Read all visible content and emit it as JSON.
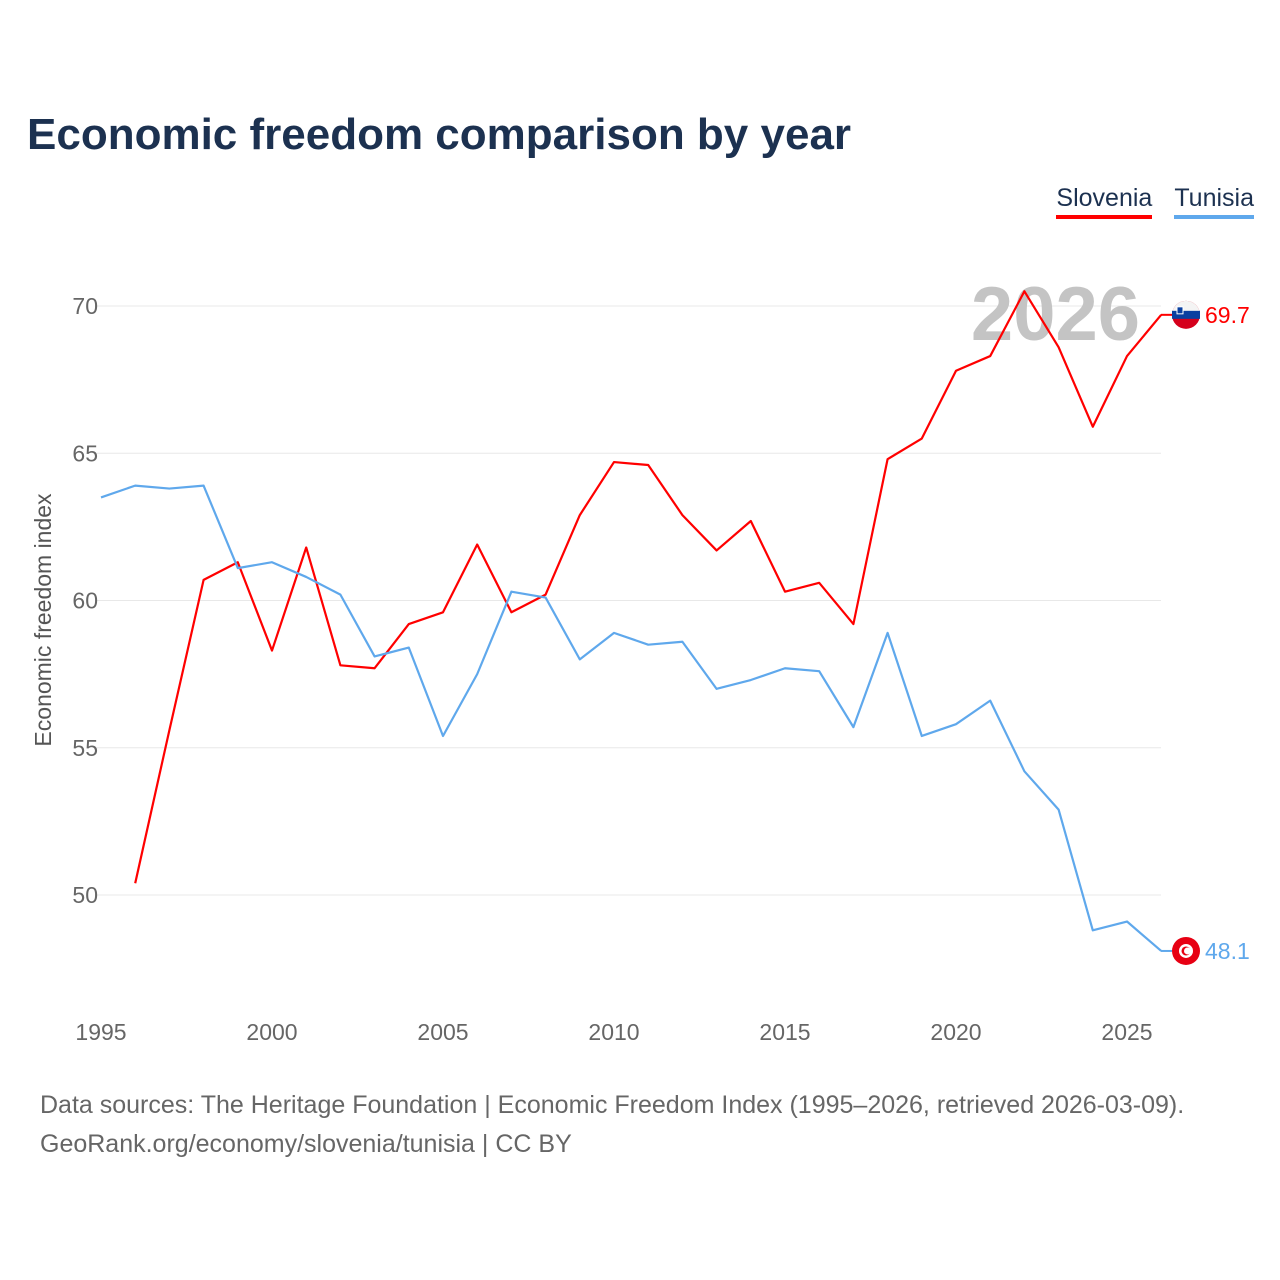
{
  "title": "Economic freedom comparison by year",
  "footer": {
    "line1": "Data sources: The Heritage Foundation | Economic Freedom Index (1995–2026, retrieved 2026-03-09).",
    "line2": "GeoRank.org/economy/slovenia/tunisia | CC BY"
  },
  "chart_data": {
    "type": "line",
    "title": "Economic freedom comparison by year",
    "xlabel": "",
    "ylabel": "Economic freedom index",
    "year_label": "2026",
    "xlim": [
      1995,
      2026
    ],
    "ylim": [
      46,
      72
    ],
    "xticks": [
      1995,
      2000,
      2005,
      2010,
      2015,
      2020,
      2025
    ],
    "yticks": [
      50,
      55,
      60,
      65,
      70
    ],
    "grid": true,
    "legend_position": "top-right",
    "series": [
      {
        "name": "Slovenia",
        "color": "#ff0000",
        "end_label": "69.7",
        "x": [
          1996,
          1997,
          1998,
          1999,
          2000,
          2001,
          2002,
          2003,
          2004,
          2005,
          2006,
          2007,
          2008,
          2009,
          2010,
          2011,
          2012,
          2013,
          2014,
          2015,
          2016,
          2017,
          2018,
          2019,
          2020,
          2021,
          2022,
          2023,
          2024,
          2025,
          2026
        ],
        "values": [
          50.4,
          55.6,
          60.7,
          61.3,
          58.3,
          61.8,
          57.8,
          57.7,
          59.2,
          59.6,
          61.9,
          59.6,
          60.2,
          62.9,
          64.7,
          64.6,
          62.9,
          61.7,
          62.7,
          60.3,
          60.6,
          59.2,
          64.8,
          65.5,
          67.8,
          68.3,
          70.5,
          68.6,
          65.9,
          68.3,
          69.7
        ]
      },
      {
        "name": "Tunisia",
        "color": "#5fa8ec",
        "end_label": "48.1",
        "x": [
          1995,
          1996,
          1997,
          1998,
          1999,
          2000,
          2001,
          2002,
          2003,
          2004,
          2005,
          2006,
          2007,
          2008,
          2009,
          2010,
          2011,
          2012,
          2013,
          2014,
          2015,
          2016,
          2017,
          2018,
          2019,
          2020,
          2021,
          2022,
          2023,
          2024,
          2025,
          2026
        ],
        "values": [
          63.5,
          63.9,
          63.8,
          63.9,
          61.1,
          61.3,
          60.8,
          60.2,
          58.1,
          58.4,
          55.4,
          57.5,
          60.3,
          60.1,
          58.0,
          58.9,
          58.5,
          58.6,
          57.0,
          57.3,
          57.7,
          57.6,
          55.7,
          58.9,
          55.4,
          55.8,
          56.6,
          54.2,
          52.9,
          48.8,
          49.1,
          48.1
        ]
      }
    ]
  }
}
